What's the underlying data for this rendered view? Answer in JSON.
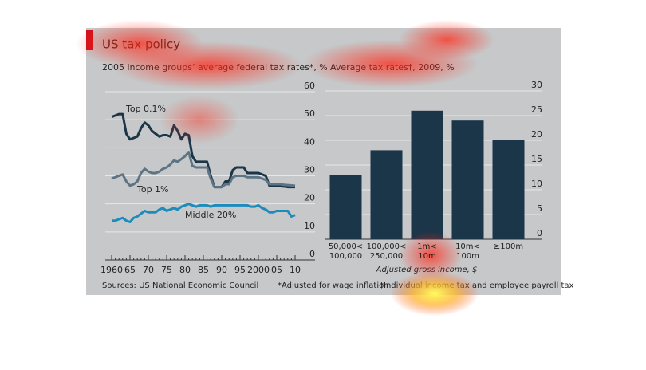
{
  "title": "US tax policy",
  "chart_data": [
    {
      "type": "line",
      "subtitle": "2005 income groups’ average federal tax rates*, %",
      "x": [
        1960,
        1961,
        1962,
        1963,
        1964,
        1965,
        1966,
        1967,
        1968,
        1969,
        1970,
        1971,
        1972,
        1973,
        1974,
        1975,
        1976,
        1977,
        1978,
        1979,
        1980,
        1981,
        1982,
        1983,
        1984,
        1985,
        1986,
        1987,
        1988,
        1989,
        1990,
        1991,
        1992,
        1993,
        1994,
        1995,
        1996,
        1997,
        1998,
        1999,
        2000,
        2001,
        2002,
        2003,
        2004,
        2005,
        2006,
        2007,
        2008,
        2009,
        2010
      ],
      "series": [
        {
          "name": "Top 0.1%",
          "color": "#1b3549",
          "values": [
            51,
            51.5,
            52,
            52,
            45,
            43,
            43.5,
            44,
            47,
            49,
            48,
            46,
            45,
            44,
            44.5,
            44.5,
            44,
            48,
            46,
            43,
            45,
            44.5,
            37,
            35,
            35,
            35,
            35,
            30,
            26,
            26,
            26,
            28,
            28,
            32,
            33,
            33,
            33,
            31,
            31,
            31,
            31,
            30.5,
            30,
            26.5,
            26.5,
            26.5,
            26.3,
            26.2,
            26,
            26,
            26
          ]
        },
        {
          "name": "Top 1%",
          "color": "#5d7484",
          "values": [
            29,
            29.5,
            30,
            30.5,
            28,
            26.5,
            27,
            28,
            31,
            32.5,
            31.5,
            31,
            31,
            31.5,
            32.5,
            33,
            34,
            35.5,
            35,
            36,
            37,
            38.5,
            33.5,
            33,
            33,
            33,
            33,
            29,
            26,
            26,
            26,
            27,
            27,
            29.5,
            30,
            30,
            30,
            29.5,
            29.5,
            29.5,
            29.5,
            29,
            28.5,
            27,
            27,
            27,
            27,
            26.8,
            26.7,
            26.6,
            26.5
          ]
        },
        {
          "name": "Middle 20%",
          "color": "#1d8cbc",
          "values": [
            14,
            14,
            14.5,
            15,
            14,
            13.5,
            15,
            15.5,
            16.5,
            17.5,
            17,
            17,
            17,
            18,
            18.5,
            17.5,
            18,
            18.5,
            18,
            19,
            19.5,
            20,
            19.5,
            19,
            19.5,
            19.5,
            19.5,
            19,
            19.5,
            19.5,
            19.5,
            19.5,
            19.5,
            19.5,
            19.5,
            19.5,
            19.5,
            19.5,
            19,
            19,
            19.5,
            18.5,
            18,
            17,
            17,
            17.5,
            17.5,
            17.5,
            17.5,
            15.5,
            16
          ]
        }
      ],
      "xlim": [
        1960,
        2010
      ],
      "xticks": [
        1960,
        {
          "value": 1965,
          "label": "65"
        },
        {
          "value": 1970,
          "label": "70"
        },
        {
          "value": 1975,
          "label": "75"
        },
        {
          "value": 1980,
          "label": "80"
        },
        {
          "value": 1985,
          "label": "85"
        },
        {
          "value": 1990,
          "label": "90"
        },
        {
          "value": 1995,
          "label": "95"
        },
        2000,
        {
          "value": 2005,
          "label": "05"
        },
        {
          "value": 2010,
          "label": "10"
        }
      ],
      "ylim": [
        0,
        60
      ],
      "yticks": [
        0,
        10,
        20,
        30,
        40,
        50,
        60
      ],
      "grid": true
    },
    {
      "type": "bar",
      "subtitle": "Average tax rates†, 2009, %",
      "categories": [
        "50,000<\n100,000",
        "100,000<\n250,000",
        "1m<\n10m",
        "10m<\n100m",
        "≥100m"
      ],
      "values": [
        13,
        18,
        26,
        24,
        20
      ],
      "color": "#1b3549",
      "xlabel": "Adjusted gross income, $",
      "ylim": [
        0,
        30
      ],
      "yticks": [
        0,
        5,
        10,
        15,
        20,
        25,
        30
      ],
      "grid": true
    }
  ],
  "source": "Sources: US National Economic Council",
  "footnotes": [
    "*Adjusted for wage inflation",
    "†Individual income tax and employee payroll tax"
  ]
}
